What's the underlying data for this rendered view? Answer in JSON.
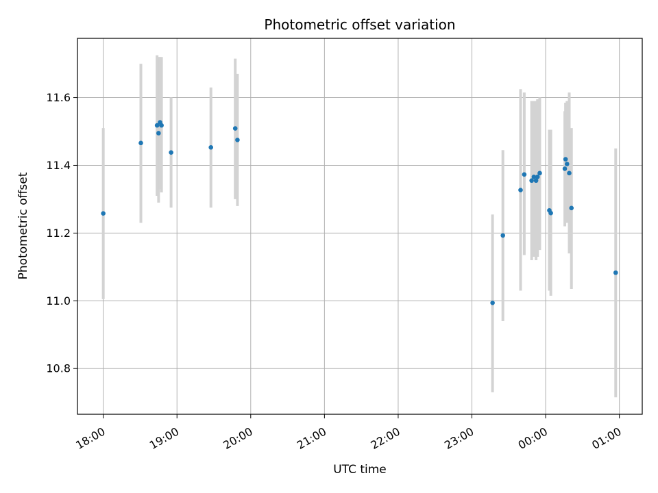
{
  "chart_data": {
    "type": "scatter",
    "title": "Photometric offset variation",
    "xlabel": "UTC time",
    "ylabel": "Photometric offset",
    "x_unit": "UTC time (hours; times after midnight shown as 24+ hours)",
    "xlim": [
      17.65,
      25.31
    ],
    "ylim": [
      10.665,
      11.775
    ],
    "grid": true,
    "legend": "none",
    "x_ticks": [
      {
        "value": 18,
        "label": "18:00"
      },
      {
        "value": 19,
        "label": "19:00"
      },
      {
        "value": 20,
        "label": "20:00"
      },
      {
        "value": 21,
        "label": "21:00"
      },
      {
        "value": 22,
        "label": "22:00"
      },
      {
        "value": 23,
        "label": "23:00"
      },
      {
        "value": 24,
        "label": "00:00"
      },
      {
        "value": 25,
        "label": "01:00"
      }
    ],
    "y_ticks": [
      {
        "value": 10.8,
        "label": "10.8"
      },
      {
        "value": 11.0,
        "label": "11.0"
      },
      {
        "value": 11.2,
        "label": "11.2"
      },
      {
        "value": 11.4,
        "label": "11.4"
      },
      {
        "value": 11.6,
        "label": "11.6"
      }
    ],
    "colors": {
      "point": "#1f77b4",
      "errorbar": "#d3d3d3",
      "grid": "#b0b0b0"
    },
    "series": [
      {
        "points": [
          {
            "x": 18.0,
            "y": 11.258,
            "ylo": 11.005,
            "yhi": 11.51
          },
          {
            "x": 18.51,
            "y": 11.466,
            "ylo": 11.23,
            "yhi": 11.7
          },
          {
            "x": 18.73,
            "y": 11.518,
            "ylo": 11.31,
            "yhi": 11.725
          },
          {
            "x": 18.75,
            "y": 11.495,
            "ylo": 11.29,
            "yhi": 11.72
          },
          {
            "x": 18.77,
            "y": 11.527,
            "ylo": 11.33,
            "yhi": 11.72
          },
          {
            "x": 18.79,
            "y": 11.518,
            "ylo": 11.32,
            "yhi": 11.72
          },
          {
            "x": 18.92,
            "y": 11.438,
            "ylo": 11.275,
            "yhi": 11.6
          },
          {
            "x": 19.46,
            "y": 11.453,
            "ylo": 11.275,
            "yhi": 11.63
          },
          {
            "x": 19.79,
            "y": 11.509,
            "ylo": 11.3,
            "yhi": 11.715
          },
          {
            "x": 19.82,
            "y": 11.475,
            "ylo": 11.28,
            "yhi": 11.67
          },
          {
            "x": 23.28,
            "y": 10.994,
            "ylo": 10.73,
            "yhi": 11.255
          },
          {
            "x": 23.42,
            "y": 11.193,
            "ylo": 10.94,
            "yhi": 11.445
          },
          {
            "x": 23.66,
            "y": 11.327,
            "ylo": 11.03,
            "yhi": 11.625
          },
          {
            "x": 23.71,
            "y": 11.373,
            "ylo": 11.135,
            "yhi": 11.615
          },
          {
            "x": 23.81,
            "y": 11.355,
            "ylo": 11.12,
            "yhi": 11.59
          },
          {
            "x": 23.84,
            "y": 11.366,
            "ylo": 11.13,
            "yhi": 11.59
          },
          {
            "x": 23.87,
            "y": 11.355,
            "ylo": 11.12,
            "yhi": 11.59
          },
          {
            "x": 23.89,
            "y": 11.366,
            "ylo": 11.13,
            "yhi": 11.595
          },
          {
            "x": 23.92,
            "y": 11.377,
            "ylo": 11.15,
            "yhi": 11.6
          },
          {
            "x": 24.05,
            "y": 11.267,
            "ylo": 11.03,
            "yhi": 11.505
          },
          {
            "x": 24.07,
            "y": 11.259,
            "ylo": 11.015,
            "yhi": 11.505
          },
          {
            "x": 24.26,
            "y": 11.39,
            "ylo": 11.22,
            "yhi": 11.56
          },
          {
            "x": 24.27,
            "y": 11.418,
            "ylo": 11.24,
            "yhi": 11.585
          },
          {
            "x": 24.29,
            "y": 11.404,
            "ylo": 11.23,
            "yhi": 11.59
          },
          {
            "x": 24.32,
            "y": 11.377,
            "ylo": 11.14,
            "yhi": 11.615
          },
          {
            "x": 24.35,
            "y": 11.274,
            "ylo": 11.035,
            "yhi": 11.51
          },
          {
            "x": 24.95,
            "y": 11.083,
            "ylo": 10.715,
            "yhi": 11.45
          }
        ]
      }
    ]
  }
}
